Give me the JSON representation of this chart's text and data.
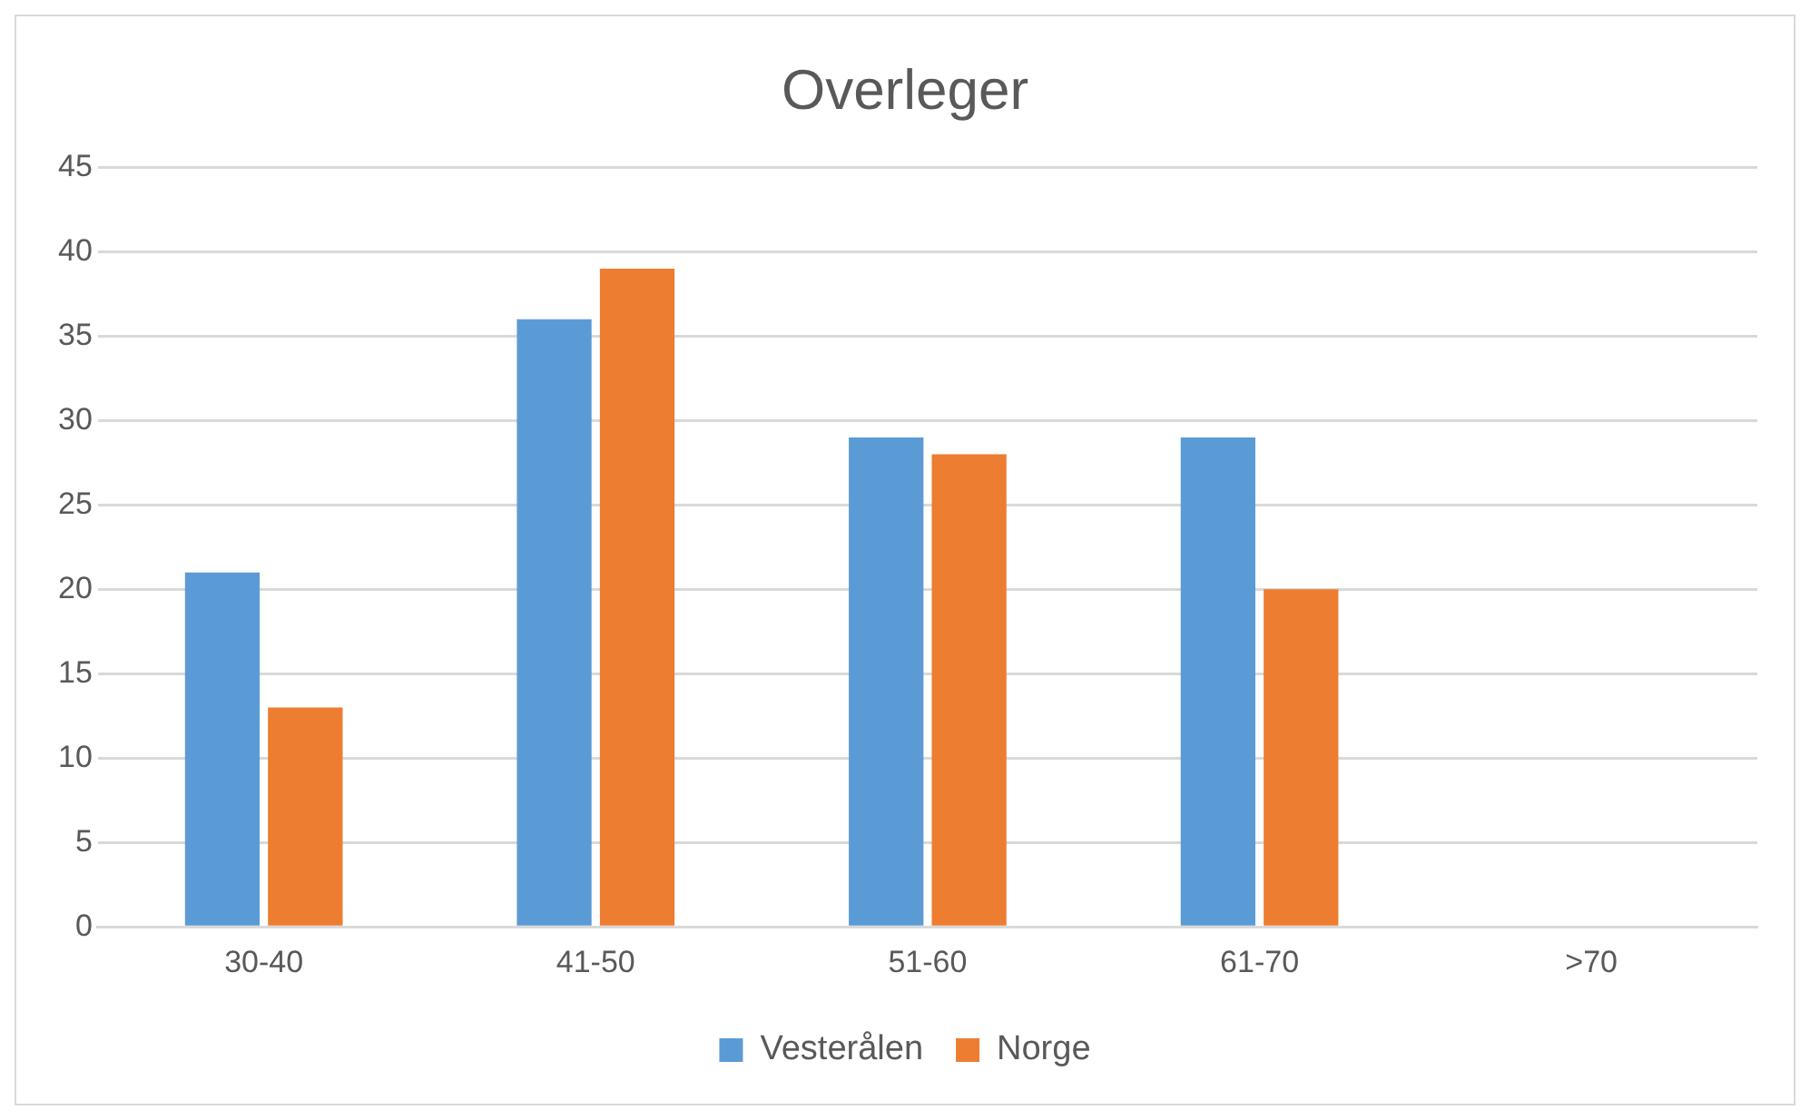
{
  "chart_data": {
    "type": "bar",
    "title": "Overleger",
    "categories": [
      "30-40",
      "41-50",
      "51-60",
      "61-70",
      ">70"
    ],
    "series": [
      {
        "name": "Vesterålen",
        "color": "#5b9bd5",
        "values": [
          21,
          36,
          29,
          29,
          0
        ]
      },
      {
        "name": "Norge",
        "color": "#ed7d31",
        "values": [
          13,
          39,
          28,
          20,
          0
        ]
      }
    ],
    "ylim": [
      0,
      45
    ],
    "yticks": [
      0,
      5,
      10,
      15,
      20,
      25,
      30,
      35,
      40,
      45
    ],
    "grid": "y",
    "legend": "bottom"
  }
}
